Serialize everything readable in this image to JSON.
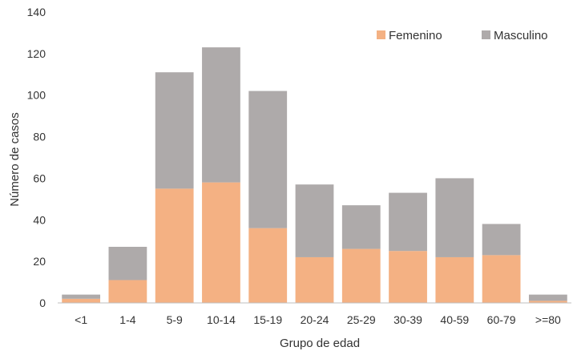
{
  "chart_data": {
    "type": "bar",
    "stacked": true,
    "categories": [
      "<1",
      "1-4",
      "5-9",
      "10-14",
      "15-19",
      "20-24",
      "25-29",
      "30-39",
      "40-59",
      "60-79",
      ">=80"
    ],
    "series": [
      {
        "name": "Femenino",
        "color": "#f4b183",
        "values": [
          2,
          11,
          55,
          58,
          36,
          22,
          26,
          25,
          22,
          23,
          1
        ]
      },
      {
        "name": "Masculino",
        "color": "#aeaaaa",
        "values": [
          2,
          16,
          56,
          65,
          66,
          35,
          21,
          28,
          38,
          15,
          3
        ]
      }
    ],
    "xlabel": "Grupo de edad",
    "ylabel": "Número de casos",
    "ylim": [
      0,
      140
    ],
    "yticks": [
      0,
      20,
      40,
      60,
      80,
      100,
      120,
      140
    ],
    "grid": false,
    "legend": "top-right"
  }
}
